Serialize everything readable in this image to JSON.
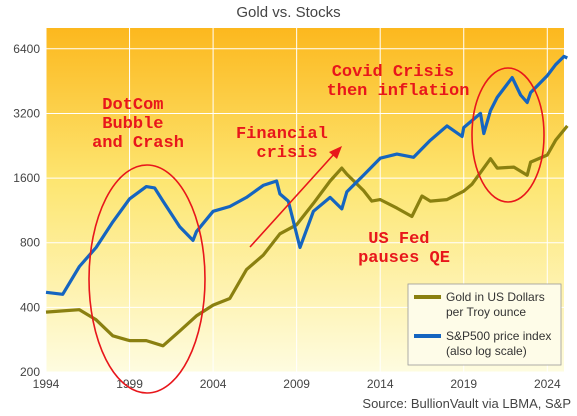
{
  "title": "Gold vs. Stocks",
  "source": "Source: BullionVault via LBMA, S&P",
  "colors": {
    "gold": "#8a8010",
    "sp500": "#1565c0",
    "annotation": "#e8161b",
    "bg_top": "#fcb81e",
    "bg_bottom": "#fefce0",
    "grid": "#ffffff"
  },
  "chart_data": {
    "type": "line",
    "title": "Gold vs. Stocks",
    "y_scale": "log2",
    "ylim": [
      200,
      8000
    ],
    "xlim": [
      1994,
      2025
    ],
    "y_ticks": [
      "200",
      "400",
      "800",
      "1600",
      "3200",
      "6400"
    ],
    "y_tick_values": [
      200,
      400,
      800,
      1600,
      3200,
      6400
    ],
    "x_ticks": [
      "1994",
      "1999",
      "2004",
      "2009",
      "2014",
      "2019",
      "2024"
    ],
    "x_tick_values": [
      1994,
      1999,
      2004,
      2009,
      2014,
      2019,
      2024
    ],
    "grid": true,
    "legend_position": "bottom-right",
    "series": [
      {
        "name": "Gold in US Dollars per Troy ounce",
        "legend_lines": [
          "Gold in US Dollars",
          "per Troy ounce"
        ],
        "color": "#8a8010",
        "points": [
          [
            1994,
            380
          ],
          [
            1995,
            385
          ],
          [
            1996,
            390
          ],
          [
            1997,
            350
          ],
          [
            1998,
            295
          ],
          [
            1999,
            280
          ],
          [
            2000,
            280
          ],
          [
            2001,
            265
          ],
          [
            2002,
            310
          ],
          [
            2003,
            365
          ],
          [
            2004,
            410
          ],
          [
            2005,
            440
          ],
          [
            2006,
            600
          ],
          [
            2007,
            700
          ],
          [
            2008,
            880
          ],
          [
            2009,
            970
          ],
          [
            2010,
            1220
          ],
          [
            2011,
            1550
          ],
          [
            2011.7,
            1780
          ],
          [
            2012,
            1670
          ],
          [
            2013,
            1400
          ],
          [
            2013.5,
            1250
          ],
          [
            2014,
            1270
          ],
          [
            2015,
            1160
          ],
          [
            2015.9,
            1060
          ],
          [
            2016.5,
            1320
          ],
          [
            2017,
            1250
          ],
          [
            2018,
            1270
          ],
          [
            2019,
            1390
          ],
          [
            2019.5,
            1500
          ],
          [
            2020.6,
            1970
          ],
          [
            2021,
            1780
          ],
          [
            2022,
            1800
          ],
          [
            2022.8,
            1650
          ],
          [
            2023,
            1900
          ],
          [
            2024,
            2050
          ],
          [
            2024.5,
            2400
          ],
          [
            2025.2,
            2800
          ]
        ]
      },
      {
        "name": "S&P500 price index (also log scale)",
        "legend_lines": [
          "S&P500 price index",
          "(also log scale)"
        ],
        "color": "#1565c0",
        "points": [
          [
            1994,
            470
          ],
          [
            1995,
            460
          ],
          [
            1996,
            620
          ],
          [
            1997,
            760
          ],
          [
            1998,
            1000
          ],
          [
            1999,
            1280
          ],
          [
            2000,
            1460
          ],
          [
            2000.5,
            1440
          ],
          [
            2001,
            1250
          ],
          [
            2002,
            950
          ],
          [
            2002.8,
            820
          ],
          [
            2003,
            900
          ],
          [
            2004,
            1120
          ],
          [
            2005,
            1180
          ],
          [
            2006,
            1300
          ],
          [
            2007,
            1480
          ],
          [
            2007.8,
            1550
          ],
          [
            2008,
            1350
          ],
          [
            2008.5,
            1250
          ],
          [
            2009.2,
            760
          ],
          [
            2010,
            1120
          ],
          [
            2011,
            1300
          ],
          [
            2011.7,
            1150
          ],
          [
            2012,
            1380
          ],
          [
            2013,
            1650
          ],
          [
            2014,
            1980
          ],
          [
            2015,
            2070
          ],
          [
            2016,
            2000
          ],
          [
            2017,
            2400
          ],
          [
            2018,
            2800
          ],
          [
            2018.9,
            2500
          ],
          [
            2019,
            2750
          ],
          [
            2020,
            3200
          ],
          [
            2020.2,
            2580
          ],
          [
            2020.6,
            3300
          ],
          [
            2021,
            3800
          ],
          [
            2021.9,
            4700
          ],
          [
            2022.4,
            3900
          ],
          [
            2022.8,
            3600
          ],
          [
            2023,
            4000
          ],
          [
            2024,
            4800
          ],
          [
            2024.5,
            5400
          ],
          [
            2025,
            5900
          ],
          [
            2025.2,
            5800
          ]
        ]
      }
    ],
    "annotations": [
      {
        "id": "dotcom",
        "lines": [
          "DotCom",
          "Bubble",
          "and Crash"
        ]
      },
      {
        "id": "financial",
        "lines": [
          "Financial",
          "crisis"
        ]
      },
      {
        "id": "covid",
        "lines": [
          "Covid Crisis",
          "then inflation"
        ]
      },
      {
        "id": "fed",
        "lines": [
          "US Fed",
          "pauses QE"
        ]
      }
    ]
  }
}
